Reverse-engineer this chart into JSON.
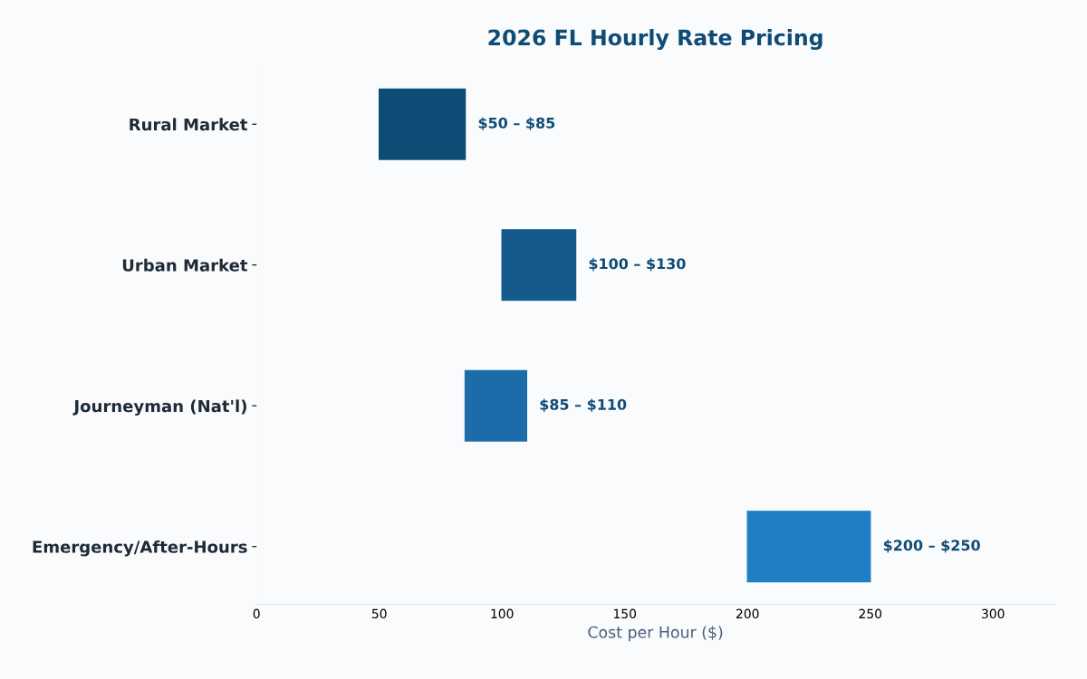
{
  "chart_data": {
    "type": "bar",
    "orientation": "horizontal",
    "title": "2026 FL Hourly Rate Pricing",
    "xlabel": "Cost per Hour ($)",
    "categories": [
      "Rural Market",
      "Urban Market",
      "Journeyman (Nat'l)",
      "Emergency/After-Hours"
    ],
    "base": [
      50,
      100,
      85,
      200
    ],
    "values": [
      35,
      30,
      25,
      50
    ],
    "colors": [
      "#0f4c75",
      "#145a8c",
      "#1b6ca8",
      "#1f7fc4"
    ],
    "annotations": [
      {
        "text": "$50 – $85",
        "x": 85,
        "y": "Rural Market"
      },
      {
        "text": "$100 – $130",
        "x": 130,
        "y": "Urban Market"
      },
      {
        "text": "$85 – $110",
        "x": 110,
        "y": "Journeyman (Nat'l)"
      },
      {
        "text": "$200 – $250",
        "x": 250,
        "y": "Emergency/After-Hours"
      }
    ],
    "xlim": [
      0,
      325
    ],
    "xticks": [
      0,
      50,
      100,
      150,
      200,
      250,
      300
    ],
    "grid": false,
    "legend": false
  }
}
